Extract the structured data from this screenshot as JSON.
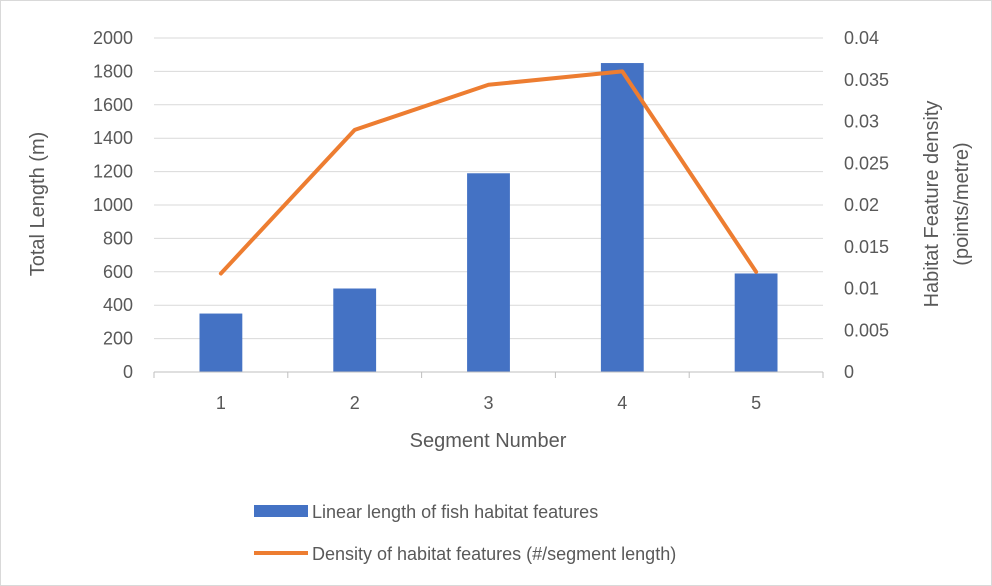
{
  "chart_data": {
    "type": "bar",
    "categories": [
      "1",
      "2",
      "3",
      "4",
      "5"
    ],
    "xlabel": "Segment Number",
    "ylabel": "Total Length (m)",
    "y2label": [
      "Habitat Feature density",
      "(points/metre)"
    ],
    "ylim": [
      0,
      2000
    ],
    "y2lim": [
      0,
      0.04
    ],
    "yticks": [
      "0",
      "200",
      "400",
      "600",
      "800",
      "1000",
      "1200",
      "1400",
      "1600",
      "1800",
      "2000"
    ],
    "y2ticks": [
      "0",
      "0.005",
      "0.01",
      "0.015",
      "0.02",
      "0.025",
      "0.03",
      "0.035",
      "0.04"
    ],
    "grid": true,
    "legend_position": "bottom",
    "series": [
      {
        "name": "Linear length of fish habitat features",
        "type": "bar",
        "axis": "left",
        "color": "#4472C4",
        "values": [
          350,
          500,
          1190,
          1850,
          590
        ]
      },
      {
        "name": "Density of habitat features (#/segment length)",
        "type": "line",
        "axis": "right",
        "color": "#ED7D31",
        "values": [
          0.0118,
          0.029,
          0.0344,
          0.036,
          0.012
        ]
      }
    ]
  }
}
